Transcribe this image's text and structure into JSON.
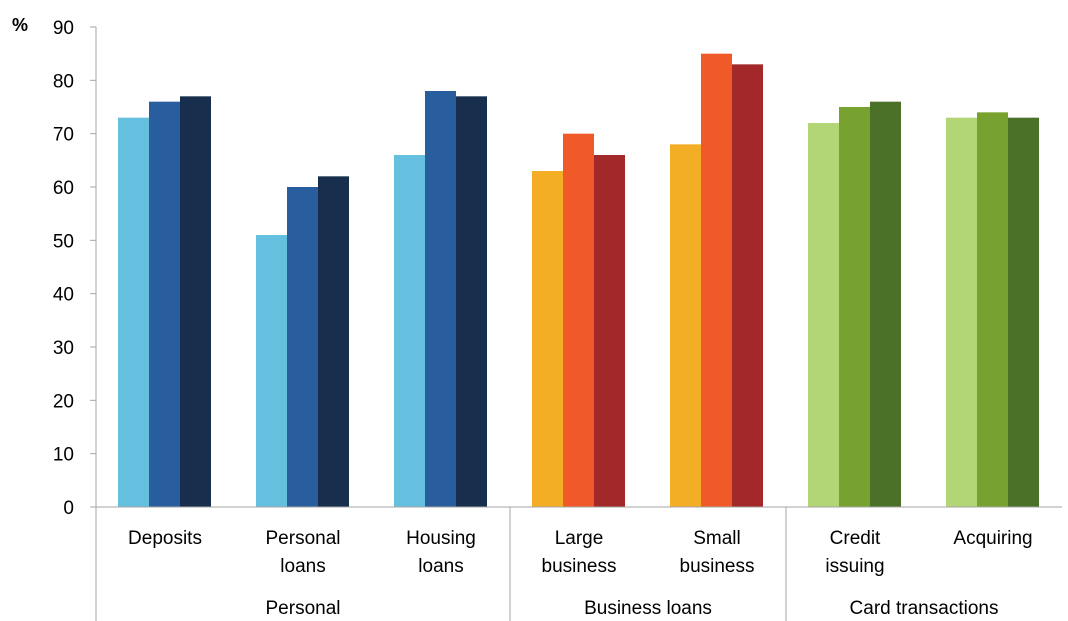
{
  "chart_data": {
    "type": "bar",
    "y_unit": "%",
    "ylim": [
      0,
      90
    ],
    "yticks": [
      0,
      10,
      20,
      30,
      40,
      50,
      60,
      70,
      80,
      90
    ],
    "grid": false,
    "legend": "none",
    "groups": [
      {
        "label": "Personal",
        "colors": [
          "#65bfde",
          "#295e9e",
          "#172e4d"
        ],
        "categories": [
          {
            "label": [
              "Deposits"
            ],
            "values": [
              73,
              76,
              77
            ]
          },
          {
            "label": [
              "Personal",
              "loans"
            ],
            "values": [
              51,
              60,
              62
            ]
          },
          {
            "label": [
              "Housing",
              "loans"
            ],
            "values": [
              66,
              78,
              77
            ]
          }
        ]
      },
      {
        "label": "Business  loans",
        "colors": [
          "#f3ae25",
          "#f05a28",
          "#a3282a"
        ],
        "categories": [
          {
            "label": [
              "Large",
              "business"
            ],
            "values": [
              63,
              70,
              66
            ]
          },
          {
            "label": [
              "Small",
              "business"
            ],
            "values": [
              68,
              85,
              83
            ]
          }
        ]
      },
      {
        "label": "Card transactions",
        "colors": [
          "#b2d676",
          "#78a22f",
          "#4b7028"
        ],
        "categories": [
          {
            "label": [
              "Credit",
              "issuing"
            ],
            "values": [
              72,
              75,
              76
            ]
          },
          {
            "label": [
              "Acquiring"
            ],
            "values": [
              73,
              74,
              73
            ]
          }
        ]
      }
    ]
  }
}
